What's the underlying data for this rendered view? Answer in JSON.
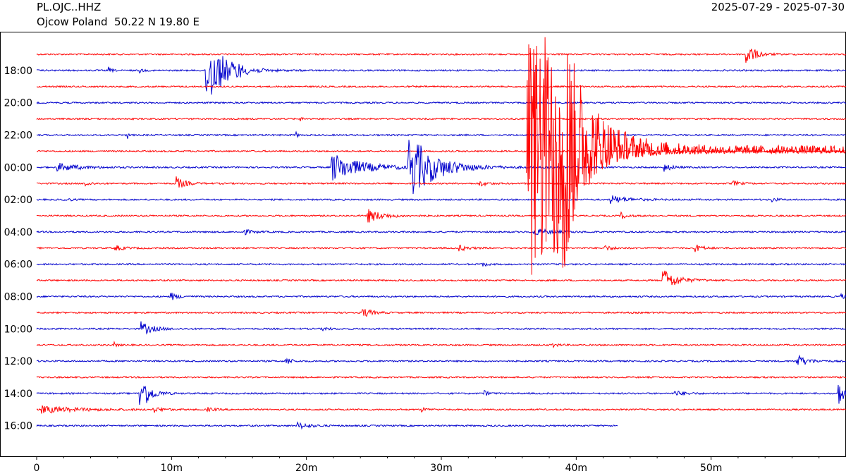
{
  "header": {
    "station_code": "PL.OJC..HHZ",
    "station_location": "Ojcow Poland  50.22 N 19.80 E",
    "date_range": "2025-07-29 - 2025-07-30"
  },
  "chart_data": {
    "type": "line",
    "title": "PL.OJC..HHZ",
    "xlabel": "",
    "ylabel": "",
    "x_range_minutes": [
      0,
      60
    ],
    "x_ticks": [
      {
        "value": 0,
        "label": "0"
      },
      {
        "value": 10,
        "label": "10m"
      },
      {
        "value": 20,
        "label": "20m"
      },
      {
        "value": 30,
        "label": "30m"
      },
      {
        "value": 40,
        "label": "40m"
      },
      {
        "value": 50,
        "label": "50m"
      }
    ],
    "y_ticks": [
      "18:00",
      "20:00",
      "22:00",
      "00:00",
      "02:00",
      "04:00",
      "06:00",
      "08:00",
      "10:00",
      "12:00",
      "14:00",
      "16:00"
    ],
    "colors": {
      "even_trace": "#ff0000",
      "odd_trace": "#0000cc"
    },
    "grid": false,
    "traces": [
      {
        "hour": "17:00",
        "color": "red",
        "end_min": 60,
        "events": [
          {
            "t": 52.5,
            "amp": 20,
            "decay": 0.6
          }
        ]
      },
      {
        "hour": "18:00",
        "color": "blue",
        "end_min": 60,
        "events": [
          {
            "t": 5.3,
            "amp": 5,
            "decay": 0.2
          },
          {
            "t": 7.6,
            "amp": 4,
            "decay": 0.2
          },
          {
            "t": 12.5,
            "amp": 60,
            "decay": 1.2
          },
          {
            "t": 14.8,
            "amp": 6,
            "decay": 0.3
          }
        ]
      },
      {
        "hour": "19:00",
        "color": "red",
        "end_min": 60,
        "events": []
      },
      {
        "hour": "20:00",
        "color": "blue",
        "end_min": 60,
        "events": []
      },
      {
        "hour": "21:00",
        "color": "red",
        "end_min": 60,
        "events": [
          {
            "t": 19.5,
            "amp": 3,
            "decay": 0.2
          }
        ]
      },
      {
        "hour": "22:00",
        "color": "blue",
        "end_min": 60,
        "events": [
          {
            "t": 6.7,
            "amp": 8,
            "decay": 0.1
          },
          {
            "t": 19.2,
            "amp": 7,
            "decay": 0.1
          }
        ]
      },
      {
        "hour": "23:00",
        "color": "red",
        "end_min": 60,
        "events": []
      },
      {
        "hour": "00:00",
        "color": "blue",
        "end_min": 60,
        "events": [
          {
            "t": 1.5,
            "amp": 6,
            "decay": 1.5
          },
          {
            "t": 21.8,
            "amp": 22,
            "decay": 2.0
          },
          {
            "t": 27.5,
            "amp": 50,
            "decay": 1.8
          },
          {
            "t": 46.5,
            "amp": 6,
            "decay": 0.5
          }
        ]
      },
      {
        "hour": "01:00",
        "color": "red",
        "end_min": 60,
        "events": [
          {
            "t": 3.6,
            "amp": 5,
            "decay": 0.3
          },
          {
            "t": 10.3,
            "amp": 10,
            "decay": 0.6
          },
          {
            "t": 32.8,
            "amp": 4,
            "decay": 0.5
          },
          {
            "t": 51.5,
            "amp": 4,
            "decay": 0.5
          }
        ]
      },
      {
        "hour": "02:00",
        "color": "blue",
        "end_min": 60,
        "events": [
          {
            "t": 2.0,
            "amp": 5,
            "decay": 0.3
          },
          {
            "t": 42.5,
            "amp": 6,
            "decay": 1.2
          },
          {
            "t": 54.5,
            "amp": 4,
            "decay": 0.3
          }
        ]
      },
      {
        "hour": "03:00",
        "color": "red",
        "end_min": 60,
        "events": [
          {
            "t": 24.5,
            "amp": 10,
            "decay": 1.0
          },
          {
            "t": 43.3,
            "amp": 5,
            "decay": 0.4
          }
        ]
      },
      {
        "hour": "04:00",
        "color": "blue",
        "end_min": 60,
        "events": [
          {
            "t": 15.3,
            "amp": 4,
            "decay": 0.6
          },
          {
            "t": 36.8,
            "amp": 5,
            "decay": 1.2
          }
        ]
      },
      {
        "hour": "05:00",
        "color": "red",
        "end_min": 60,
        "events": [
          {
            "t": 5.8,
            "amp": 4,
            "decay": 0.6
          },
          {
            "t": 31.3,
            "amp": 4,
            "decay": 0.6
          },
          {
            "t": 42.0,
            "amp": 4,
            "decay": 0.6
          },
          {
            "t": 48.8,
            "amp": 6,
            "decay": 0.5
          }
        ]
      },
      {
        "hour": "06:00",
        "color": "blue",
        "end_min": 60,
        "events": [
          {
            "t": 33.0,
            "amp": 4,
            "decay": 0.3
          }
        ]
      },
      {
        "hour": "07:00",
        "color": "red",
        "end_min": 60,
        "events": [
          {
            "t": 46.4,
            "amp": 18,
            "decay": 0.9
          }
        ]
      },
      {
        "hour": "08:00",
        "color": "blue",
        "end_min": 60,
        "events": [
          {
            "t": 9.9,
            "amp": 6,
            "decay": 0.5
          },
          {
            "t": 59.6,
            "amp": 4,
            "decay": 0.3
          }
        ]
      },
      {
        "hour": "09:00",
        "color": "red",
        "end_min": 60,
        "events": [
          {
            "t": 24.1,
            "amp": 8,
            "decay": 0.6
          }
        ]
      },
      {
        "hour": "10:00",
        "color": "blue",
        "end_min": 60,
        "events": [
          {
            "t": 7.7,
            "amp": 10,
            "decay": 0.8
          },
          {
            "t": 21.2,
            "amp": 3,
            "decay": 0.4
          }
        ]
      },
      {
        "hour": "11:00",
        "color": "red",
        "end_min": 60,
        "events": [
          {
            "t": 5.7,
            "amp": 4,
            "decay": 0.2
          },
          {
            "t": 38.2,
            "amp": 4,
            "decay": 0.3
          }
        ]
      },
      {
        "hour": "12:00",
        "color": "blue",
        "end_min": 60,
        "events": [
          {
            "t": 18.4,
            "amp": 10,
            "decay": 0.3
          },
          {
            "t": 56.3,
            "amp": 10,
            "decay": 0.7
          }
        ]
      },
      {
        "hour": "13:00",
        "color": "red",
        "end_min": 60,
        "events": []
      },
      {
        "hour": "14:00",
        "color": "blue",
        "end_min": 60,
        "events": [
          {
            "t": 7.6,
            "amp": 35,
            "decay": 0.6
          },
          {
            "t": 33.1,
            "amp": 5,
            "decay": 0.3
          },
          {
            "t": 47.2,
            "amp": 4,
            "decay": 0.8
          },
          {
            "t": 59.4,
            "amp": 20,
            "decay": 0.4
          }
        ]
      },
      {
        "hour": "15:00",
        "color": "red",
        "end_min": 60,
        "events": [
          {
            "t": 0.3,
            "amp": 5,
            "decay": 2.5
          },
          {
            "t": 8.6,
            "amp": 4,
            "decay": 0.6
          },
          {
            "t": 12.6,
            "amp": 3,
            "decay": 0.5
          },
          {
            "t": 28.5,
            "amp": 3,
            "decay": 0.4
          }
        ]
      },
      {
        "hour": "16:00",
        "color": "blue",
        "end_min": 43.1,
        "events": [
          {
            "t": 19.3,
            "amp": 5,
            "decay": 0.8
          }
        ]
      }
    ],
    "big_event": {
      "color": "red",
      "start_hour": "23:00",
      "onset_min": 36.3,
      "peak_end_min": 39.5,
      "coda_amp": 8
    }
  }
}
